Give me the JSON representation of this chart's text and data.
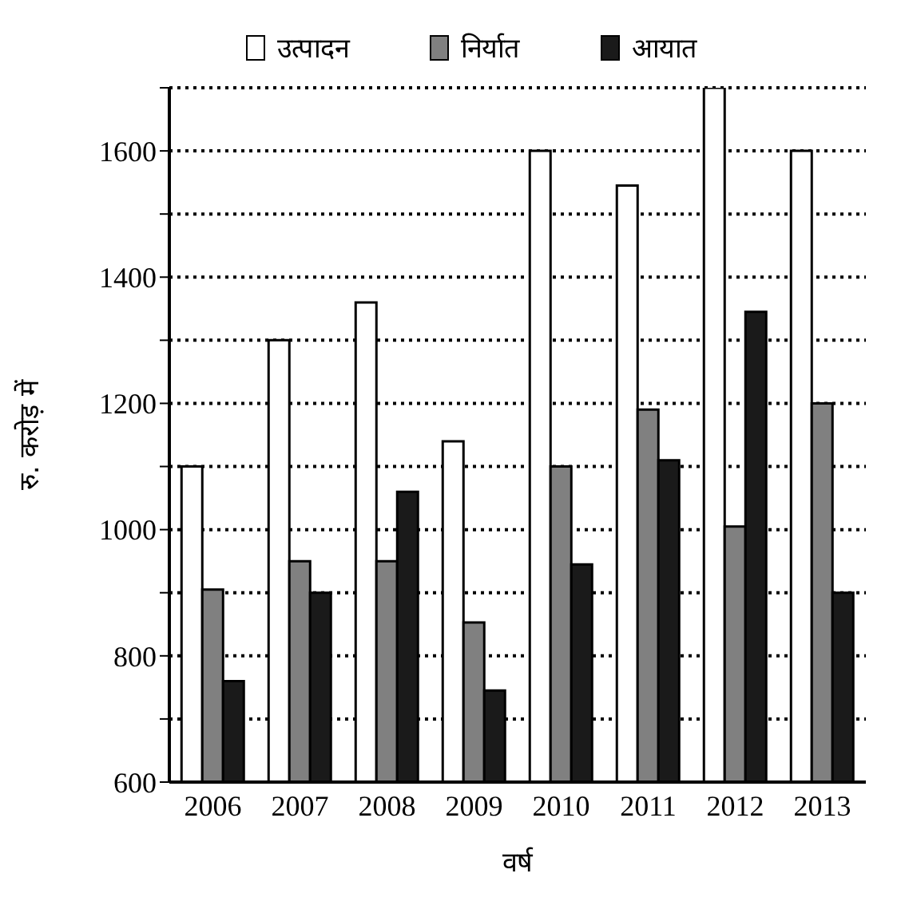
{
  "chart_data": {
    "type": "bar",
    "xlabel": "वर्ष",
    "ylabel": "रु. करोड़ में",
    "categories": [
      "2006",
      "2007",
      "2008",
      "2009",
      "2010",
      "2011",
      "2012",
      "2013"
    ],
    "series": [
      {
        "name": "उत्पादन",
        "color": "#ffffff",
        "values": [
          1100,
          1300,
          1360,
          1140,
          1600,
          1545,
          1700,
          1600
        ]
      },
      {
        "name": "निर्यात",
        "color": "#808080",
        "values": [
          905,
          950,
          950,
          853,
          1100,
          1190,
          1005,
          1200
        ]
      },
      {
        "name": "आयात",
        "color": "#1a1a1a",
        "values": [
          760,
          900,
          1060,
          745,
          945,
          1110,
          1345,
          900
        ]
      }
    ],
    "ylim": [
      600,
      1700
    ],
    "yticks": [
      600,
      {
        "value": 700,
        "label": null
      },
      800,
      {
        "value": 900,
        "label": null
      },
      1000,
      {
        "value": 1100,
        "label": null
      },
      1200,
      {
        "value": 1300,
        "label": null
      },
      1400,
      {
        "value": 1500,
        "label": null
      },
      1600,
      {
        "value": 1700,
        "label": null
      }
    ],
    "grid": "y",
    "legend": "top"
  }
}
